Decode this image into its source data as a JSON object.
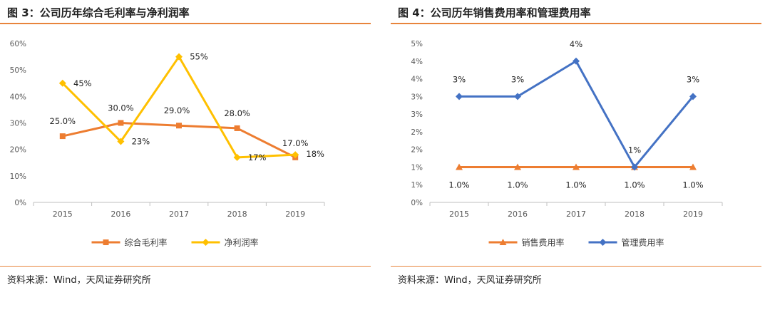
{
  "charts": [
    {
      "title": "图 3：公司历年综合毛利率与净利润率",
      "source": "资料来源：Wind，天风证券研究所",
      "chart_data": {
        "type": "line",
        "categories": [
          "2015",
          "2016",
          "2017",
          "2018",
          "2019"
        ],
        "ylim": [
          0,
          60
        ],
        "yticks": [
          "0%",
          "10%",
          "20%",
          "30%",
          "40%",
          "50%",
          "60%"
        ],
        "grid": false,
        "legend": "bottom",
        "series": [
          {
            "name": "综合毛利率",
            "values": [
              25.0,
              30.0,
              29.0,
              28.0,
              17.0
            ],
            "labels": [
              "25.0%",
              "30.0%",
              "29.0%",
              "28.0%",
              "17.0%"
            ],
            "color": "#ed7d31",
            "marker": "square"
          },
          {
            "name": "净利润率",
            "values": [
              45,
              23,
              55,
              17,
              18
            ],
            "labels": [
              "45%",
              "23%",
              "55%",
              "17%",
              "18%"
            ],
            "color": "#ffc000",
            "marker": "diamond"
          }
        ]
      }
    },
    {
      "title": "图 4：公司历年销售费用率和管理费用率",
      "source": "资料来源：Wind，天风证券研究所",
      "chart_data": {
        "type": "line",
        "categories": [
          "2015",
          "2016",
          "2017",
          "2018",
          "2019"
        ],
        "ylim": [
          0,
          4.5
        ],
        "yticks": [
          "0%",
          "1%",
          "1%",
          "2%",
          "2%",
          "3%",
          "3%",
          "4%",
          "4%",
          "5%"
        ],
        "grid": false,
        "legend": "bottom",
        "series": [
          {
            "name": "销售费用率",
            "values": [
              1.0,
              1.0,
              1.0,
              1.0,
              1.0
            ],
            "labels": [
              "1.0%",
              "1.0%",
              "1.0%",
              "1.0%",
              "1.0%"
            ],
            "color": "#ed7d31",
            "marker": "triangle"
          },
          {
            "name": "管理费用率",
            "values": [
              3.0,
              3.0,
              4.0,
              1.0,
              3.0
            ],
            "labels": [
              "3%",
              "3%",
              "4%",
              "1%",
              "3%"
            ],
            "color": "#4472c4",
            "marker": "diamond"
          }
        ]
      }
    }
  ]
}
